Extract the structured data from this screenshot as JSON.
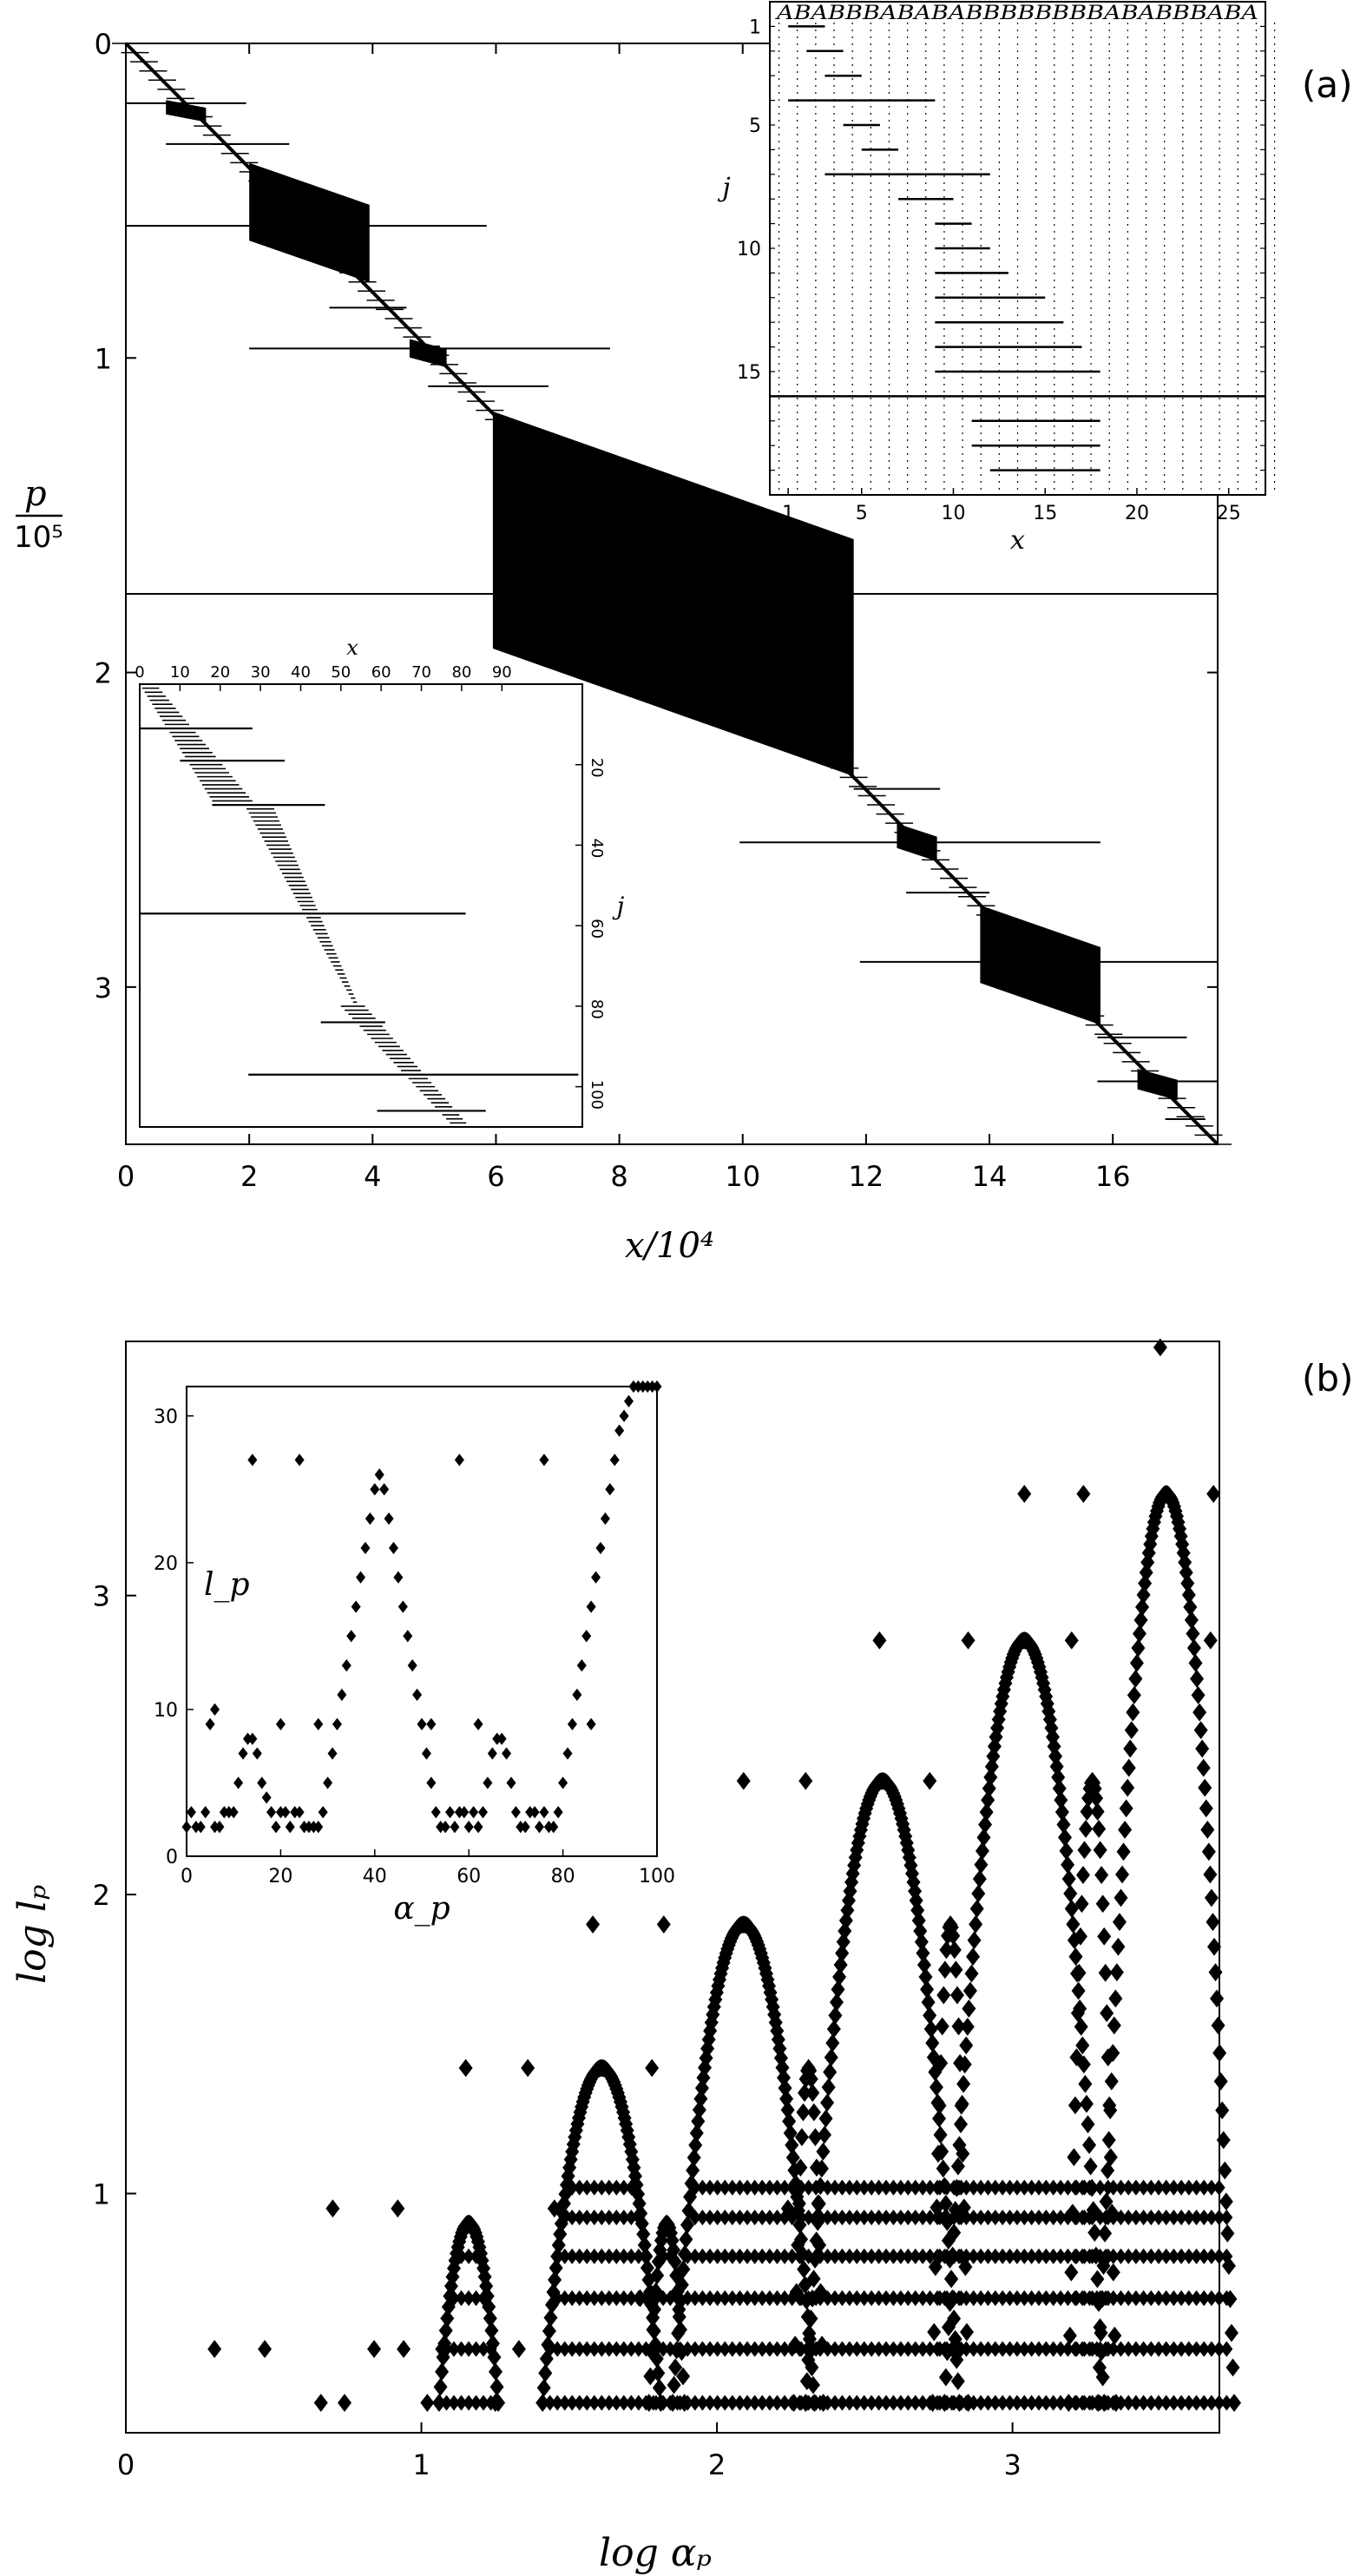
{
  "panels": {
    "a": {
      "label": "(a)",
      "xlabel": "x/10⁴",
      "ylabel_num": "p",
      "ylabel_den": "10⁵"
    },
    "b": {
      "label": "(b)",
      "xlabel": "log αₚ",
      "ylabel": "log lₚ"
    }
  },
  "chart_data": [
    {
      "id": "a-main",
      "type": "scatter",
      "title": "",
      "xlabel": "x/10^4",
      "ylabel": "p/10^5",
      "xlim": [
        0,
        17.7
      ],
      "ylim": [
        0,
        3.5
      ],
      "x_inverted": false,
      "y_inverted": true,
      "xticks": [
        0,
        2,
        4,
        6,
        8,
        10,
        12,
        14,
        16
      ],
      "yticks": [
        0,
        1,
        2,
        3
      ],
      "diagonal": {
        "from": [
          0,
          0
        ],
        "to": [
          17.7,
          3.5
        ]
      },
      "blocks": [
        {
          "x0": 0.65,
          "x1": 1.3,
          "p0": 0.18,
          "p1": 0.25
        },
        {
          "x0": 2.0,
          "x1": 3.95,
          "p0": 0.38,
          "p1": 0.76
        },
        {
          "x0": 4.6,
          "x1": 5.2,
          "p0": 0.94,
          "p1": 1.03
        },
        {
          "x0": 5.95,
          "x1": 11.8,
          "p0": 1.17,
          "p1": 2.33
        },
        {
          "x0": 12.5,
          "x1": 13.15,
          "p0": 2.48,
          "p1": 2.6
        },
        {
          "x0": 13.85,
          "x1": 15.8,
          "p0": 2.74,
          "p1": 3.12
        },
        {
          "x0": 16.4,
          "x1": 17.05,
          "p0": 3.26,
          "p1": 3.36
        }
      ],
      "long_lines": [
        {
          "x0": 0.0,
          "x1": 1.95,
          "p": 0.19
        },
        {
          "x0": 0.65,
          "x1": 2.65,
          "p": 0.32
        },
        {
          "x0": 0.0,
          "x1": 5.85,
          "p": 0.58
        },
        {
          "x0": 3.3,
          "x1": 4.55,
          "p": 0.84
        },
        {
          "x0": 2.0,
          "x1": 7.85,
          "p": 0.97
        },
        {
          "x0": 4.9,
          "x1": 6.85,
          "p": 1.09
        },
        {
          "x0": 0.0,
          "x1": 17.7,
          "p": 1.75
        },
        {
          "x0": 11.8,
          "x1": 13.2,
          "p": 2.37
        },
        {
          "x0": 9.95,
          "x1": 15.8,
          "p": 2.54
        },
        {
          "x0": 12.65,
          "x1": 14.0,
          "p": 2.7
        },
        {
          "x0": 11.9,
          "x1": 17.7,
          "p": 2.92
        },
        {
          "x0": 15.75,
          "x1": 17.2,
          "p": 3.16
        },
        {
          "x0": 15.75,
          "x1": 17.7,
          "p": 3.3
        },
        {
          "x0": 16.85,
          "x1": 17.5,
          "p": 3.42
        }
      ]
    },
    {
      "id": "a-inset-top",
      "type": "scatter",
      "xlabel": "x",
      "ylabel": "j",
      "sequence": "ABABBBABABABBBBBBBBABABBBABA",
      "xlim": [
        0,
        27
      ],
      "ylim": [
        0,
        20
      ],
      "y_inverted": true,
      "xticks": [
        1,
        5,
        10,
        15,
        20,
        25
      ],
      "yticks": [
        1,
        5,
        10,
        15
      ],
      "segments": [
        {
          "j": 1,
          "x0": 1,
          "x1": 3
        },
        {
          "j": 2,
          "x0": 2,
          "x1": 4
        },
        {
          "j": 3,
          "x0": 3,
          "x1": 5
        },
        {
          "j": 4,
          "x0": 1,
          "x1": 9
        },
        {
          "j": 5,
          "x0": 4,
          "x1": 6
        },
        {
          "j": 6,
          "x0": 5,
          "x1": 7
        },
        {
          "j": 7,
          "x0": 3,
          "x1": 12
        },
        {
          "j": 8,
          "x0": 7,
          "x1": 10
        },
        {
          "j": 9,
          "x0": 9,
          "x1": 11
        },
        {
          "j": 10,
          "x0": 9,
          "x1": 12
        },
        {
          "j": 11,
          "x0": 9,
          "x1": 13
        },
        {
          "j": 12,
          "x0": 9,
          "x1": 15
        },
        {
          "j": 13,
          "x0": 9,
          "x1": 16
        },
        {
          "j": 14,
          "x0": 9,
          "x1": 17
        },
        {
          "j": 15,
          "x0": 9,
          "x1": 18
        },
        {
          "j": 16,
          "x0": 0,
          "x1": 27
        },
        {
          "j": 17,
          "x0": 11,
          "x1": 18
        },
        {
          "j": 18,
          "x0": 11,
          "x1": 18
        },
        {
          "j": 19,
          "x0": 12,
          "x1": 18
        }
      ]
    },
    {
      "id": "a-inset-bottom",
      "type": "scatter",
      "xlabel": "x",
      "ylabel": "j",
      "xlim": [
        0,
        110
      ],
      "ylim": [
        0,
        110
      ],
      "y_inverted": true,
      "xticks": [
        0,
        10,
        20,
        30,
        40,
        50,
        60,
        70,
        80,
        90
      ],
      "yticks": [
        20,
        40,
        60,
        80,
        100
      ],
      "long_lines": [
        {
          "j": 11,
          "x0": 0,
          "x1": 28
        },
        {
          "j": 19,
          "x0": 10,
          "x1": 36
        },
        {
          "j": 30,
          "x0": 18,
          "x1": 46
        },
        {
          "j": 57,
          "x0": 0,
          "x1": 81
        },
        {
          "j": 84,
          "x0": 45,
          "x1": 61
        },
        {
          "j": 97,
          "x0": 27,
          "x1": 109
        },
        {
          "j": 106,
          "x0": 59,
          "x1": 86
        }
      ],
      "sweeps": [
        {
          "j0": 0,
          "j1": 30,
          "a0": 0,
          "a1": 18,
          "b0": 4,
          "b1": 28
        },
        {
          "j0": 30,
          "j1": 80,
          "a0": 26,
          "a1": 53,
          "b0": 33,
          "b1": 54
        },
        {
          "j0": 80,
          "j1": 111,
          "a0": 50,
          "a1": 78,
          "b0": 56,
          "b1": 82
        }
      ]
    },
    {
      "id": "b-main",
      "type": "scatter",
      "title": "",
      "xlabel": "log α_p",
      "ylabel": "log l_p",
      "xlim": [
        0,
        3.7
      ],
      "ylim": [
        0.2,
        3.85
      ],
      "xticks": [
        0,
        1,
        2,
        3
      ],
      "yticks": [
        1,
        2,
        3
      ],
      "arches": [
        {
          "center": 1.16,
          "half_width": 0.1,
          "top": 0.9
        },
        {
          "center": 1.61,
          "half_width": 0.2,
          "top": 1.42
        },
        {
          "center": 1.83,
          "half_width": 0.06,
          "top": 0.9
        },
        {
          "center": 2.09,
          "half_width": 0.24,
          "top": 1.9
        },
        {
          "center": 2.31,
          "half_width": 0.05,
          "top": 1.42
        },
        {
          "center": 2.56,
          "half_width": 0.26,
          "top": 2.38
        },
        {
          "center": 2.79,
          "half_width": 0.06,
          "top": 1.9
        },
        {
          "center": 3.04,
          "half_width": 0.27,
          "top": 2.85
        },
        {
          "center": 3.27,
          "half_width": 0.08,
          "top": 2.38
        },
        {
          "center": 3.52,
          "half_width": 0.23,
          "top": 3.34
        }
      ],
      "level_rows": [
        0.3,
        0.48,
        0.65,
        0.79,
        0.92,
        1.02
      ],
      "outliers": [
        {
          "x": 0.3,
          "y": 0.48
        },
        {
          "x": 0.47,
          "y": 0.48
        },
        {
          "x": 0.66,
          "y": 0.3
        },
        {
          "x": 0.74,
          "y": 0.3
        },
        {
          "x": 0.7,
          "y": 0.95
        },
        {
          "x": 0.84,
          "y": 0.48
        },
        {
          "x": 0.92,
          "y": 0.95
        },
        {
          "x": 0.94,
          "y": 0.48
        },
        {
          "x": 1.02,
          "y": 0.3
        },
        {
          "x": 1.07,
          "y": 0.48
        },
        {
          "x": 1.15,
          "y": 1.42
        },
        {
          "x": 1.33,
          "y": 0.48
        },
        {
          "x": 1.36,
          "y": 1.42
        },
        {
          "x": 1.25,
          "y": 0.3
        },
        {
          "x": 1.45,
          "y": 0.95
        },
        {
          "x": 1.58,
          "y": 1.9
        },
        {
          "x": 1.74,
          "y": 0.65
        },
        {
          "x": 1.78,
          "y": 1.42
        },
        {
          "x": 1.82,
          "y": 1.9
        },
        {
          "x": 2.09,
          "y": 2.38
        },
        {
          "x": 2.3,
          "y": 2.38
        },
        {
          "x": 2.24,
          "y": 0.95
        },
        {
          "x": 2.55,
          "y": 2.85
        },
        {
          "x": 2.72,
          "y": 2.38
        },
        {
          "x": 2.85,
          "y": 2.85
        },
        {
          "x": 3.04,
          "y": 3.34
        },
        {
          "x": 3.2,
          "y": 2.85
        },
        {
          "x": 3.24,
          "y": 3.34
        },
        {
          "x": 3.5,
          "y": 3.83
        },
        {
          "x": 3.68,
          "y": 3.34
        },
        {
          "x": 3.67,
          "y": 2.85
        }
      ]
    },
    {
      "id": "b-inset",
      "type": "scatter",
      "xlabel": "α_p",
      "ylabel": "l_p",
      "xlim": [
        0,
        100
      ],
      "ylim": [
        0,
        32
      ],
      "xticks": [
        0,
        20,
        40,
        60,
        80,
        100
      ],
      "yticks": [
        0,
        10,
        20,
        30
      ],
      "points": [
        {
          "x": 0,
          "y": 2
        },
        {
          "x": 1,
          "y": 3
        },
        {
          "x": 2,
          "y": 2
        },
        {
          "x": 3,
          "y": 2
        },
        {
          "x": 4,
          "y": 3
        },
        {
          "x": 5,
          "y": 9
        },
        {
          "x": 6,
          "y": 2
        },
        {
          "x": 7,
          "y": 2
        },
        {
          "x": 8,
          "y": 3
        },
        {
          "x": 9,
          "y": 3
        },
        {
          "x": 10,
          "y": 3
        },
        {
          "x": 11,
          "y": 5
        },
        {
          "x": 12,
          "y": 7
        },
        {
          "x": 13,
          "y": 8
        },
        {
          "x": 14,
          "y": 8
        },
        {
          "x": 15,
          "y": 7
        },
        {
          "x": 16,
          "y": 5
        },
        {
          "x": 17,
          "y": 4
        },
        {
          "x": 18,
          "y": 3
        },
        {
          "x": 19,
          "y": 2
        },
        {
          "x": 20,
          "y": 3
        },
        {
          "x": 21,
          "y": 3
        },
        {
          "x": 22,
          "y": 2
        },
        {
          "x": 23,
          "y": 3
        },
        {
          "x": 24,
          "y": 3
        },
        {
          "x": 25,
          "y": 2
        },
        {
          "x": 26,
          "y": 2
        },
        {
          "x": 27,
          "y": 2
        },
        {
          "x": 28,
          "y": 2
        },
        {
          "x": 29,
          "y": 3
        },
        {
          "x": 30,
          "y": 5
        },
        {
          "x": 31,
          "y": 7
        },
        {
          "x": 32,
          "y": 9
        },
        {
          "x": 33,
          "y": 11
        },
        {
          "x": 34,
          "y": 13
        },
        {
          "x": 35,
          "y": 15
        },
        {
          "x": 36,
          "y": 17
        },
        {
          "x": 37,
          "y": 19
        },
        {
          "x": 38,
          "y": 21
        },
        {
          "x": 39,
          "y": 23
        },
        {
          "x": 40,
          "y": 25
        },
        {
          "x": 41,
          "y": 26
        },
        {
          "x": 42,
          "y": 25
        },
        {
          "x": 43,
          "y": 23
        },
        {
          "x": 44,
          "y": 21
        },
        {
          "x": 45,
          "y": 19
        },
        {
          "x": 46,
          "y": 17
        },
        {
          "x": 47,
          "y": 15
        },
        {
          "x": 48,
          "y": 13
        },
        {
          "x": 49,
          "y": 11
        },
        {
          "x": 50,
          "y": 9
        },
        {
          "x": 51,
          "y": 7
        },
        {
          "x": 52,
          "y": 5
        },
        {
          "x": 53,
          "y": 3
        },
        {
          "x": 54,
          "y": 2
        },
        {
          "x": 55,
          "y": 2
        },
        {
          "x": 56,
          "y": 3
        },
        {
          "x": 57,
          "y": 2
        },
        {
          "x": 58,
          "y": 3
        },
        {
          "x": 59,
          "y": 3
        },
        {
          "x": 60,
          "y": 2
        },
        {
          "x": 61,
          "y": 3
        },
        {
          "x": 62,
          "y": 2
        },
        {
          "x": 63,
          "y": 3
        },
        {
          "x": 64,
          "y": 5
        },
        {
          "x": 65,
          "y": 7
        },
        {
          "x": 66,
          "y": 8
        },
        {
          "x": 67,
          "y": 8
        },
        {
          "x": 68,
          "y": 7
        },
        {
          "x": 69,
          "y": 5
        },
        {
          "x": 70,
          "y": 3
        },
        {
          "x": 71,
          "y": 2
        },
        {
          "x": 72,
          "y": 2
        },
        {
          "x": 73,
          "y": 3
        },
        {
          "x": 74,
          "y": 3
        },
        {
          "x": 75,
          "y": 2
        },
        {
          "x": 76,
          "y": 3
        },
        {
          "x": 77,
          "y": 2
        },
        {
          "x": 78,
          "y": 2
        },
        {
          "x": 79,
          "y": 3
        },
        {
          "x": 80,
          "y": 5
        },
        {
          "x": 81,
          "y": 7
        },
        {
          "x": 82,
          "y": 9
        },
        {
          "x": 83,
          "y": 11
        },
        {
          "x": 84,
          "y": 13
        },
        {
          "x": 85,
          "y": 15
        },
        {
          "x": 86,
          "y": 17
        },
        {
          "x": 87,
          "y": 19
        },
        {
          "x": 88,
          "y": 21
        },
        {
          "x": 89,
          "y": 23
        },
        {
          "x": 90,
          "y": 25
        },
        {
          "x": 91,
          "y": 27
        },
        {
          "x": 92,
          "y": 29
        },
        {
          "x": 93,
          "y": 30
        },
        {
          "x": 94,
          "y": 31
        },
        {
          "x": 95,
          "y": 32
        },
        {
          "x": 96,
          "y": 32
        },
        {
          "x": 97,
          "y": 32
        },
        {
          "x": 98,
          "y": 32
        },
        {
          "x": 99,
          "y": 32
        },
        {
          "x": 100,
          "y": 32
        },
        {
          "x": 6,
          "y": 10
        },
        {
          "x": 14,
          "y": 27
        },
        {
          "x": 20,
          "y": 9
        },
        {
          "x": 24,
          "y": 27
        },
        {
          "x": 28,
          "y": 9
        },
        {
          "x": 52,
          "y": 9
        },
        {
          "x": 58,
          "y": 27
        },
        {
          "x": 62,
          "y": 9
        },
        {
          "x": 76,
          "y": 27
        },
        {
          "x": 86,
          "y": 9
        }
      ]
    }
  ]
}
